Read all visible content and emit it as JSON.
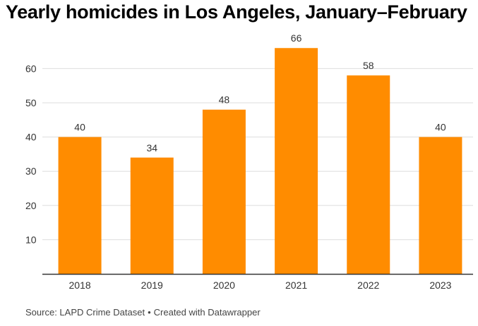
{
  "title": "Yearly homicides in Los Angeles, January–February",
  "footer": {
    "source": "Source: LAPD Crime Dataset",
    "separator": "•",
    "credit": "Created with Datawrapper"
  },
  "colors": {
    "bar": "#FF8C00",
    "grid": "#DDDDDD",
    "axis": "#333333",
    "text": "#333333"
  },
  "chart_data": {
    "type": "bar",
    "title": "Yearly homicides in Los Angeles, January–February",
    "xlabel": "",
    "ylabel": "",
    "categories": [
      "2018",
      "2019",
      "2020",
      "2021",
      "2022",
      "2023"
    ],
    "values": [
      40,
      34,
      48,
      66,
      58,
      40
    ],
    "ylim": [
      0,
      70
    ],
    "yticks": [
      10,
      20,
      30,
      40,
      50,
      60
    ],
    "grid": true,
    "data_labels": true,
    "legend": "none"
  }
}
